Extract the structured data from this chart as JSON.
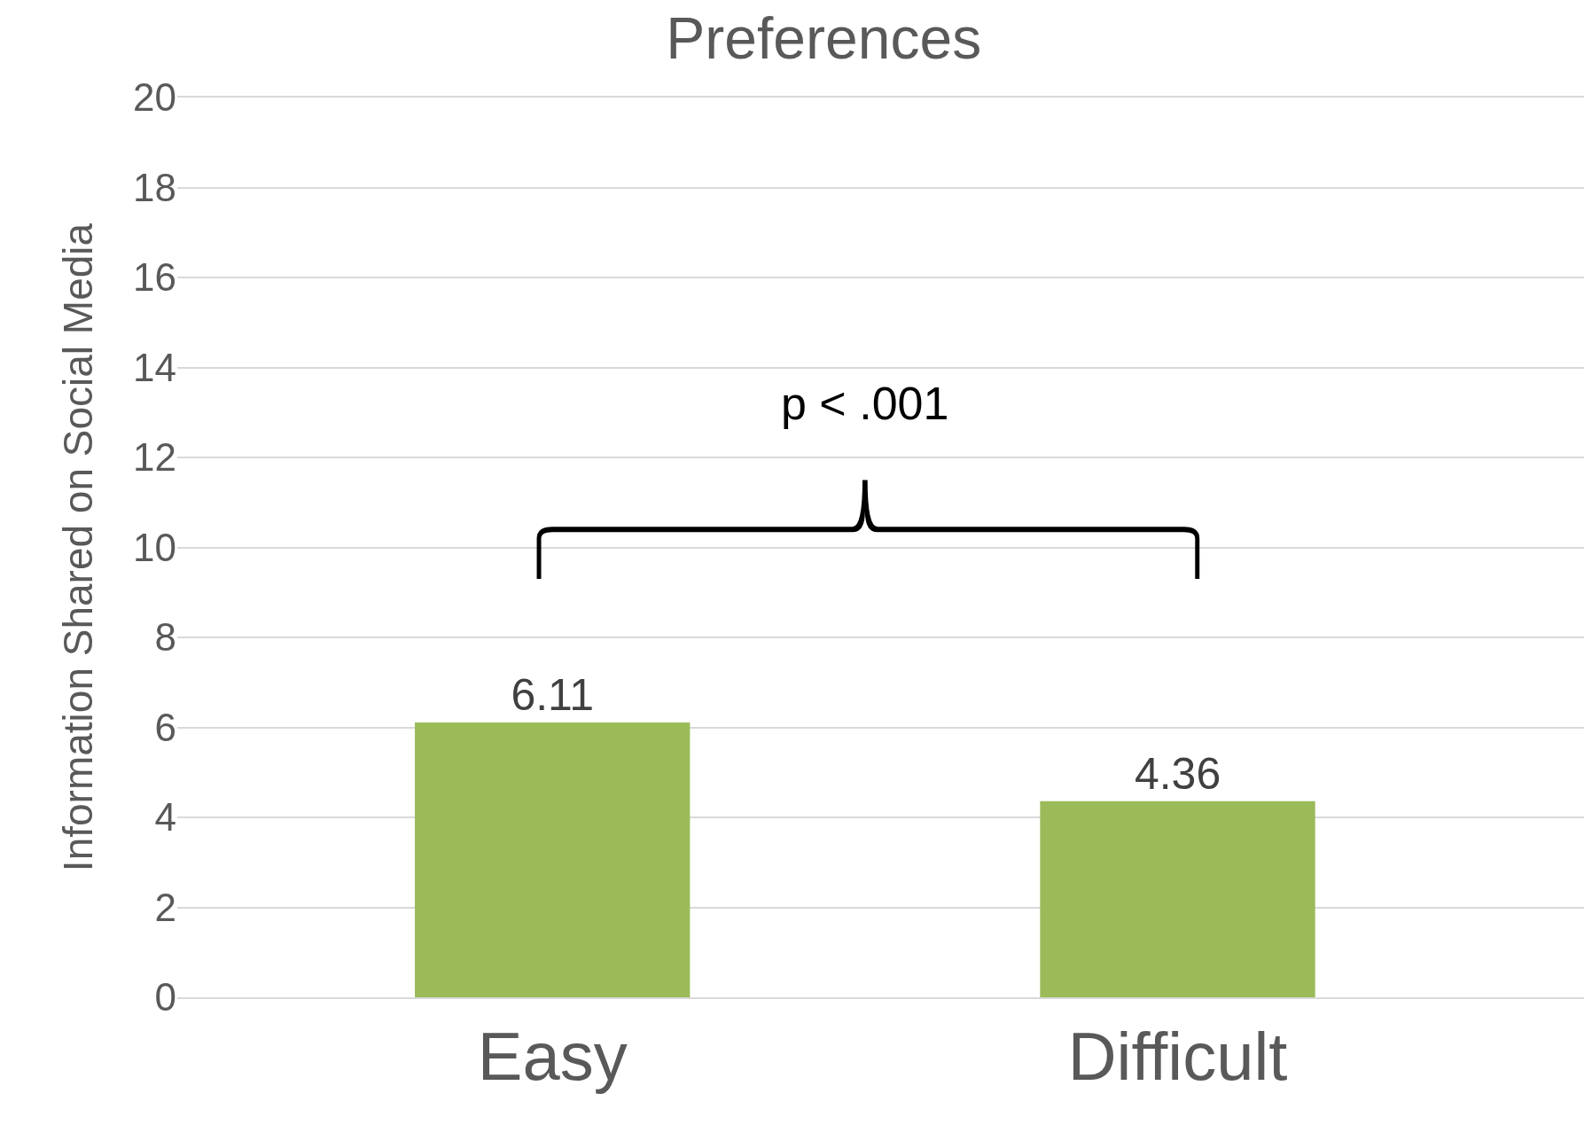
{
  "chart_data": {
    "type": "bar",
    "title": "Preferences",
    "ylabel": "Information Shared on Social Media",
    "categories": [
      "Easy",
      "Difficult"
    ],
    "values": [
      6.11,
      4.36
    ],
    "color": "#9bbb59",
    "ylim": [
      0,
      20
    ],
    "yticks": [
      0,
      2,
      4,
      6,
      8,
      10,
      12,
      14,
      16,
      18,
      20
    ],
    "grid": "y",
    "data_labels": true,
    "annotations": [
      "p < .001"
    ]
  }
}
